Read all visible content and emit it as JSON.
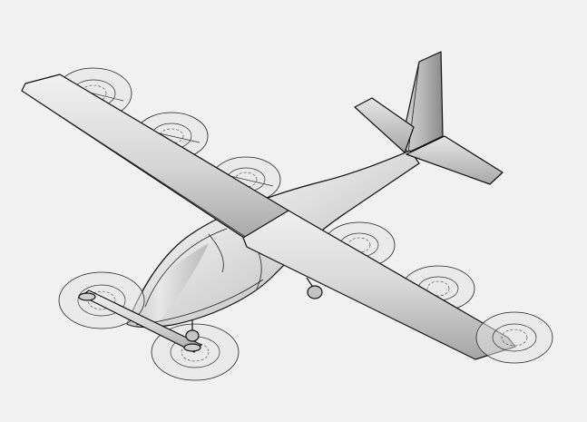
{
  "scene": {
    "subject": "evtol-aircraft-isometric-render",
    "background_color": "#f1f1f1",
    "body_color": "#cfcfcf",
    "body_highlight": "#f4f4f4",
    "body_shadow": "#9c9c9c",
    "outline_color": "#111111",
    "rotor_color": "#e3e3e3"
  }
}
